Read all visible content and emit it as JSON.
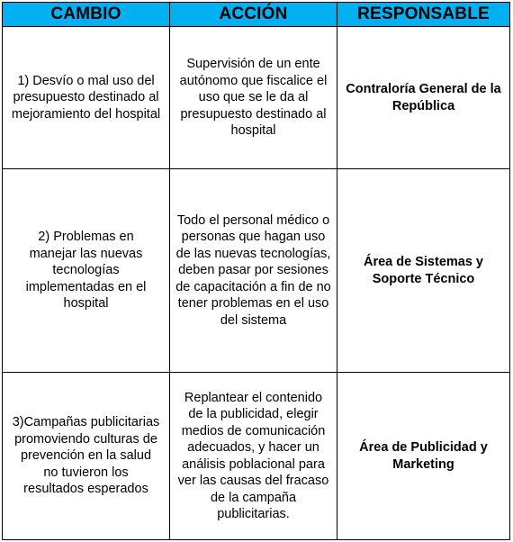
{
  "colors": {
    "header_bg": "#00b0f0",
    "border": "#000000",
    "text": "#000000"
  },
  "table": {
    "headers": [
      "CAMBIO",
      "ACCIÓN",
      "RESPONSABLE"
    ],
    "rows": [
      {
        "cambio": "1) Desvío o mal uso del presupuesto destinado al mejoramiento del hospital",
        "accion": "Supervisión de un ente autónomo que fiscalice el uso que se le da al presupuesto destinado al hospital",
        "responsable": "Contraloría General de la República"
      },
      {
        "cambio": "2) Problemas en manejar las nuevas tecnologías implementadas en el hospital",
        "accion": "Todo el personal médico o personas que hagan uso de las nuevas tecnologías, deben pasar por sesiones de capacitación a fin de no tener problemas en el uso del sistema",
        "responsable": "Área de Sistemas y Soporte Técnico"
      },
      {
        "cambio": "3)Campañas publicitarias promoviendo culturas de prevención en la salud no tuvieron los resultados esperados",
        "accion": "Replantear el contenido de la publicidad, elegir medios de comunicación adecuados, y hacer un análisis poblacional para ver las causas del fracaso de la campaña publicitarias.",
        "responsable": "Área de Publicidad y Marketing"
      }
    ]
  }
}
